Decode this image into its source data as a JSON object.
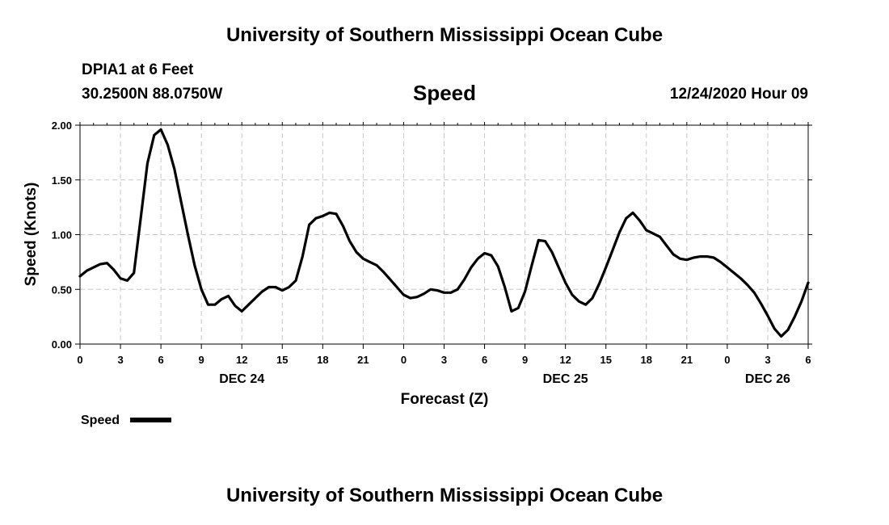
{
  "header": {
    "title": "University of Southern Mississippi Ocean Cube",
    "station": "DPIA1 at 6 Feet",
    "coords": "30.2500N 88.0750W",
    "chart_title": "Speed",
    "datetime": "12/24/2020 Hour 09"
  },
  "legend": {
    "label": "Speed"
  },
  "footer": {
    "title": "University of Southern Mississippi Ocean Cube"
  },
  "chart_data": {
    "type": "line",
    "title": "Speed",
    "xlabel": "Forecast (Z)",
    "ylabel": "Speed (Knots)",
    "xlim": [
      0,
      54
    ],
    "ylim": [
      0,
      2
    ],
    "yticks": [
      0,
      0.5,
      1,
      1.5,
      2
    ],
    "ytick_labels": [
      "0.00",
      "0.50",
      "1.00",
      "1.50",
      "2.00"
    ],
    "xticks": [
      0,
      3,
      6,
      9,
      12,
      15,
      18,
      21,
      24,
      27,
      30,
      33,
      36,
      39,
      42,
      45,
      48,
      51,
      54
    ],
    "xtick_labels": [
      "0",
      "3",
      "6",
      "9",
      "12",
      "15",
      "18",
      "21",
      "0",
      "3",
      "6",
      "9",
      "12",
      "15",
      "18",
      "21",
      "0",
      "3",
      "6"
    ],
    "date_labels": [
      {
        "text": "DEC 24",
        "x": 12
      },
      {
        "text": "DEC 25",
        "x": 36
      },
      {
        "text": "DEC 26",
        "x": 51
      }
    ],
    "grid": true,
    "series": [
      {
        "name": "Speed",
        "color": "#000000",
        "x": [
          0,
          0.5,
          1,
          1.5,
          2,
          2.5,
          3,
          3.5,
          4,
          4.5,
          5,
          5.5,
          6,
          6.5,
          7,
          7.5,
          8,
          8.5,
          9,
          9.5,
          10,
          10.5,
          11,
          11.5,
          12,
          12.5,
          13,
          13.5,
          14,
          14.5,
          15,
          15.5,
          16,
          16.5,
          17,
          17.5,
          18,
          18.5,
          19,
          19.5,
          20,
          20.5,
          21,
          21.5,
          22,
          22.5,
          23,
          23.5,
          24,
          24.5,
          25,
          25.5,
          26,
          26.5,
          27,
          27.5,
          28,
          28.5,
          29,
          29.5,
          30,
          30.5,
          31,
          31.5,
          32,
          32.5,
          33,
          33.5,
          34,
          34.5,
          35,
          35.5,
          36,
          36.5,
          37,
          37.5,
          38,
          38.5,
          39,
          39.5,
          40,
          40.5,
          41,
          41.5,
          42,
          42.5,
          43,
          43.5,
          44,
          44.5,
          45,
          45.5,
          46,
          46.5,
          47,
          47.5,
          48,
          48.5,
          49,
          49.5,
          50,
          50.5,
          51,
          51.5,
          52,
          52.5,
          53,
          53.5,
          54
        ],
        "values": [
          0.62,
          0.67,
          0.7,
          0.73,
          0.74,
          0.68,
          0.6,
          0.58,
          0.65,
          1.15,
          1.65,
          1.91,
          1.96,
          1.82,
          1.6,
          1.3,
          1.0,
          0.72,
          0.5,
          0.36,
          0.36,
          0.41,
          0.44,
          0.35,
          0.3,
          0.36,
          0.42,
          0.48,
          0.52,
          0.52,
          0.49,
          0.52,
          0.58,
          0.8,
          1.09,
          1.15,
          1.17,
          1.2,
          1.19,
          1.08,
          0.94,
          0.84,
          0.78,
          0.75,
          0.72,
          0.66,
          0.59,
          0.52,
          0.45,
          0.42,
          0.43,
          0.46,
          0.5,
          0.49,
          0.47,
          0.47,
          0.5,
          0.59,
          0.7,
          0.78,
          0.83,
          0.81,
          0.71,
          0.52,
          0.3,
          0.33,
          0.48,
          0.72,
          0.95,
          0.94,
          0.84,
          0.7,
          0.56,
          0.45,
          0.39,
          0.36,
          0.42,
          0.55,
          0.7,
          0.86,
          1.02,
          1.15,
          1.2,
          1.13,
          1.04,
          1.01,
          0.98,
          0.9,
          0.82,
          0.78,
          0.77,
          0.79,
          0.8,
          0.8,
          0.79,
          0.75,
          0.7,
          0.65,
          0.6,
          0.54,
          0.47,
          0.37,
          0.26,
          0.14,
          0.07,
          0.13,
          0.25,
          0.39,
          0.56
        ]
      }
    ]
  }
}
